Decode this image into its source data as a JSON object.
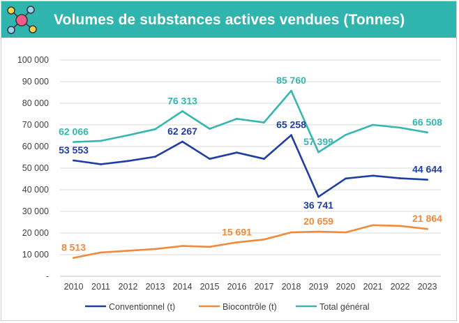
{
  "header": {
    "title": "Volumes de substances actives vendues (Tonnes)"
  },
  "icons": {
    "logo": "molecule-network-icon"
  },
  "colors": {
    "header_bg": "#2fb5ad",
    "conventionnel": "#1f3ea3",
    "biocontrole": "#f08a3c",
    "total": "#34b7af",
    "grid": "#d9d9d9"
  },
  "chart_data": {
    "type": "line",
    "categories": [
      "2010",
      "2011",
      "2012",
      "2013",
      "2014",
      "2015",
      "2016",
      "2017",
      "2018",
      "2019",
      "2020",
      "2021",
      "2022",
      "2023"
    ],
    "ylim": [
      0,
      100000
    ],
    "y_ticks": [
      {
        "value": 0,
        "label": "-"
      },
      {
        "value": 10000,
        "label": "10 000"
      },
      {
        "value": 20000,
        "label": "20 000"
      },
      {
        "value": 30000,
        "label": "30 000"
      },
      {
        "value": 40000,
        "label": "40 000"
      },
      {
        "value": 50000,
        "label": "50 000"
      },
      {
        "value": 60000,
        "label": "60 000"
      },
      {
        "value": 70000,
        "label": "70 000"
      },
      {
        "value": 80000,
        "label": "80 000"
      },
      {
        "value": 90000,
        "label": "90 000"
      },
      {
        "value": 100000,
        "label": "100 000"
      }
    ],
    "series": [
      {
        "name": "Conventionnel (t)",
        "color": "#1f3ea3",
        "values": [
          53553,
          51800,
          53300,
          55300,
          62267,
          54300,
          57200,
          54300,
          65258,
          36741,
          45200,
          46500,
          45300,
          44644
        ],
        "data_labels": [
          {
            "index": 0,
            "text": "53 553",
            "anchor": "above"
          },
          {
            "index": 4,
            "text": "62 267",
            "anchor": "above"
          },
          {
            "index": 8,
            "text": "65 258",
            "anchor": "above"
          },
          {
            "index": 9,
            "text": "36 741",
            "anchor": "below"
          },
          {
            "index": 13,
            "text": "44 644",
            "anchor": "above"
          }
        ]
      },
      {
        "name": "Biocontrôle (t)",
        "color": "#f08a3c",
        "values": [
          8513,
          11000,
          11800,
          12600,
          14000,
          13600,
          15691,
          17000,
          20300,
          20659,
          20300,
          23600,
          23300,
          21864
        ],
        "data_labels": [
          {
            "index": 0,
            "text": "8 513",
            "anchor": "above"
          },
          {
            "index": 6,
            "text": "15 691",
            "anchor": "above"
          },
          {
            "index": 9,
            "text": "20 659",
            "anchor": "above"
          },
          {
            "index": 13,
            "text": "21 864",
            "anchor": "above"
          }
        ]
      },
      {
        "name": "Total général",
        "color": "#34b7af",
        "values": [
          62066,
          62600,
          65200,
          68000,
          76313,
          68200,
          72800,
          71100,
          85760,
          57399,
          65400,
          70000,
          68700,
          66508
        ],
        "data_labels": [
          {
            "index": 0,
            "text": "62 066",
            "anchor": "above"
          },
          {
            "index": 4,
            "text": "76 313",
            "anchor": "above"
          },
          {
            "index": 8,
            "text": "85 760",
            "anchor": "above"
          },
          {
            "index": 9,
            "text": "57 399",
            "anchor": "above"
          },
          {
            "index": 13,
            "text": "66 508",
            "anchor": "above"
          }
        ]
      }
    ],
    "legend": [
      "Conventionnel (t)",
      "Biocontrôle (t)",
      "Total général"
    ],
    "legend_position": "bottom",
    "grid": true
  }
}
